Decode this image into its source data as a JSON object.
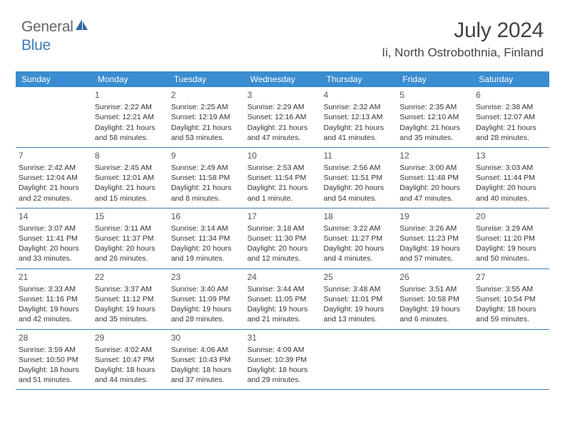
{
  "logo": {
    "text_gray": "General",
    "text_blue": "Blue"
  },
  "title": {
    "month_year": "July 2024",
    "location": "Ii, North Ostrobothnia, Finland"
  },
  "colors": {
    "header_bg": "#3a8dd0",
    "border": "#3a7cb8",
    "text": "#333333",
    "logo_gray": "#666666",
    "logo_blue": "#3a7cb8"
  },
  "day_names": [
    "Sunday",
    "Monday",
    "Tuesday",
    "Wednesday",
    "Thursday",
    "Friday",
    "Saturday"
  ],
  "weeks": [
    [
      null,
      {
        "n": "1",
        "sr": "Sunrise: 2:22 AM",
        "ss": "Sunset: 12:21 AM",
        "d1": "Daylight: 21 hours",
        "d2": "and 58 minutes."
      },
      {
        "n": "2",
        "sr": "Sunrise: 2:25 AM",
        "ss": "Sunset: 12:19 AM",
        "d1": "Daylight: 21 hours",
        "d2": "and 53 minutes."
      },
      {
        "n": "3",
        "sr": "Sunrise: 2:29 AM",
        "ss": "Sunset: 12:16 AM",
        "d1": "Daylight: 21 hours",
        "d2": "and 47 minutes."
      },
      {
        "n": "4",
        "sr": "Sunrise: 2:32 AM",
        "ss": "Sunset: 12:13 AM",
        "d1": "Daylight: 21 hours",
        "d2": "and 41 minutes."
      },
      {
        "n": "5",
        "sr": "Sunrise: 2:35 AM",
        "ss": "Sunset: 12:10 AM",
        "d1": "Daylight: 21 hours",
        "d2": "and 35 minutes."
      },
      {
        "n": "6",
        "sr": "Sunrise: 2:38 AM",
        "ss": "Sunset: 12:07 AM",
        "d1": "Daylight: 21 hours",
        "d2": "and 28 minutes."
      }
    ],
    [
      {
        "n": "7",
        "sr": "Sunrise: 2:42 AM",
        "ss": "Sunset: 12:04 AM",
        "d1": "Daylight: 21 hours",
        "d2": "and 22 minutes."
      },
      {
        "n": "8",
        "sr": "Sunrise: 2:45 AM",
        "ss": "Sunset: 12:01 AM",
        "d1": "Daylight: 21 hours",
        "d2": "and 15 minutes."
      },
      {
        "n": "9",
        "sr": "Sunrise: 2:49 AM",
        "ss": "Sunset: 11:58 PM",
        "d1": "Daylight: 21 hours",
        "d2": "and 8 minutes."
      },
      {
        "n": "10",
        "sr": "Sunrise: 2:53 AM",
        "ss": "Sunset: 11:54 PM",
        "d1": "Daylight: 21 hours",
        "d2": "and 1 minute."
      },
      {
        "n": "11",
        "sr": "Sunrise: 2:56 AM",
        "ss": "Sunset: 11:51 PM",
        "d1": "Daylight: 20 hours",
        "d2": "and 54 minutes."
      },
      {
        "n": "12",
        "sr": "Sunrise: 3:00 AM",
        "ss": "Sunset: 11:48 PM",
        "d1": "Daylight: 20 hours",
        "d2": "and 47 minutes."
      },
      {
        "n": "13",
        "sr": "Sunrise: 3:03 AM",
        "ss": "Sunset: 11:44 PM",
        "d1": "Daylight: 20 hours",
        "d2": "and 40 minutes."
      }
    ],
    [
      {
        "n": "14",
        "sr": "Sunrise: 3:07 AM",
        "ss": "Sunset: 11:41 PM",
        "d1": "Daylight: 20 hours",
        "d2": "and 33 minutes."
      },
      {
        "n": "15",
        "sr": "Sunrise: 3:11 AM",
        "ss": "Sunset: 11:37 PM",
        "d1": "Daylight: 20 hours",
        "d2": "and 26 minutes."
      },
      {
        "n": "16",
        "sr": "Sunrise: 3:14 AM",
        "ss": "Sunset: 11:34 PM",
        "d1": "Daylight: 20 hours",
        "d2": "and 19 minutes."
      },
      {
        "n": "17",
        "sr": "Sunrise: 3:18 AM",
        "ss": "Sunset: 11:30 PM",
        "d1": "Daylight: 20 hours",
        "d2": "and 12 minutes."
      },
      {
        "n": "18",
        "sr": "Sunrise: 3:22 AM",
        "ss": "Sunset: 11:27 PM",
        "d1": "Daylight: 20 hours",
        "d2": "and 4 minutes."
      },
      {
        "n": "19",
        "sr": "Sunrise: 3:26 AM",
        "ss": "Sunset: 11:23 PM",
        "d1": "Daylight: 19 hours",
        "d2": "and 57 minutes."
      },
      {
        "n": "20",
        "sr": "Sunrise: 3:29 AM",
        "ss": "Sunset: 11:20 PM",
        "d1": "Daylight: 19 hours",
        "d2": "and 50 minutes."
      }
    ],
    [
      {
        "n": "21",
        "sr": "Sunrise: 3:33 AM",
        "ss": "Sunset: 11:16 PM",
        "d1": "Daylight: 19 hours",
        "d2": "and 42 minutes."
      },
      {
        "n": "22",
        "sr": "Sunrise: 3:37 AM",
        "ss": "Sunset: 11:12 PM",
        "d1": "Daylight: 19 hours",
        "d2": "and 35 minutes."
      },
      {
        "n": "23",
        "sr": "Sunrise: 3:40 AM",
        "ss": "Sunset: 11:09 PM",
        "d1": "Daylight: 19 hours",
        "d2": "and 28 minutes."
      },
      {
        "n": "24",
        "sr": "Sunrise: 3:44 AM",
        "ss": "Sunset: 11:05 PM",
        "d1": "Daylight: 19 hours",
        "d2": "and 21 minutes."
      },
      {
        "n": "25",
        "sr": "Sunrise: 3:48 AM",
        "ss": "Sunset: 11:01 PM",
        "d1": "Daylight: 19 hours",
        "d2": "and 13 minutes."
      },
      {
        "n": "26",
        "sr": "Sunrise: 3:51 AM",
        "ss": "Sunset: 10:58 PM",
        "d1": "Daylight: 19 hours",
        "d2": "and 6 minutes."
      },
      {
        "n": "27",
        "sr": "Sunrise: 3:55 AM",
        "ss": "Sunset: 10:54 PM",
        "d1": "Daylight: 18 hours",
        "d2": "and 59 minutes."
      }
    ],
    [
      {
        "n": "28",
        "sr": "Sunrise: 3:59 AM",
        "ss": "Sunset: 10:50 PM",
        "d1": "Daylight: 18 hours",
        "d2": "and 51 minutes."
      },
      {
        "n": "29",
        "sr": "Sunrise: 4:02 AM",
        "ss": "Sunset: 10:47 PM",
        "d1": "Daylight: 18 hours",
        "d2": "and 44 minutes."
      },
      {
        "n": "30",
        "sr": "Sunrise: 4:06 AM",
        "ss": "Sunset: 10:43 PM",
        "d1": "Daylight: 18 hours",
        "d2": "and 37 minutes."
      },
      {
        "n": "31",
        "sr": "Sunrise: 4:09 AM",
        "ss": "Sunset: 10:39 PM",
        "d1": "Daylight: 18 hours",
        "d2": "and 29 minutes."
      },
      null,
      null,
      null
    ]
  ]
}
